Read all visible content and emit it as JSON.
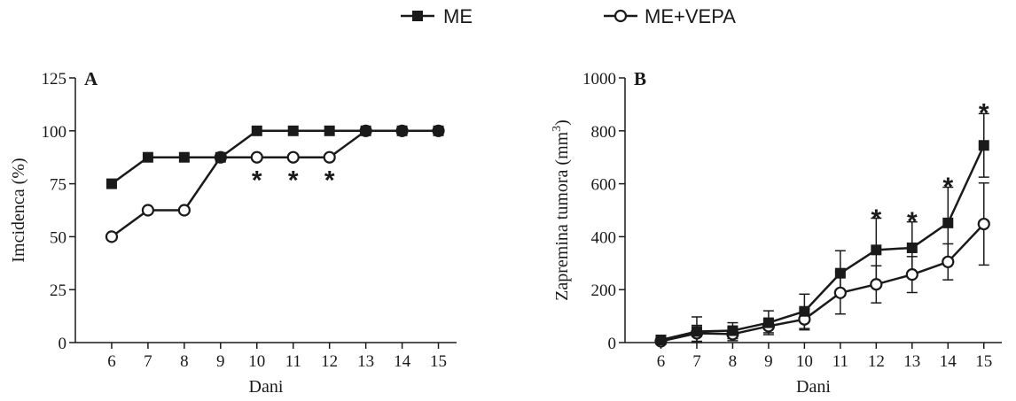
{
  "legend": {
    "position": "top-center",
    "items": [
      {
        "label": "ME",
        "marker": "filled-square"
      },
      {
        "label": "ME+VEPA",
        "marker": "open-circle"
      }
    ]
  },
  "colors": {
    "series": "#1a1a1a",
    "background": "#ffffff"
  },
  "chart_data": [
    {
      "type": "line",
      "panel_label": "A",
      "title": "",
      "xlabel": "Dani",
      "ylabel": "Imcidenca (%)",
      "x": [
        6,
        7,
        8,
        9,
        10,
        11,
        12,
        13,
        14,
        15
      ],
      "xlim": [
        5,
        15.5
      ],
      "ylim": [
        0,
        125
      ],
      "yticks": [
        0,
        25,
        50,
        75,
        100,
        125
      ],
      "grid": false,
      "series": [
        {
          "name": "ME",
          "marker": "filled-square",
          "values": [
            75,
            87.5,
            87.5,
            87.5,
            100,
            100,
            100,
            100,
            100,
            100
          ]
        },
        {
          "name": "ME+VEPA",
          "marker": "open-circle",
          "values": [
            50,
            62.5,
            62.5,
            87.5,
            87.5,
            87.5,
            87.5,
            100,
            100,
            100
          ]
        }
      ],
      "annotations": [
        {
          "x": 10,
          "y": 80,
          "text": "*"
        },
        {
          "x": 11,
          "y": 80,
          "text": "*"
        },
        {
          "x": 12,
          "y": 80,
          "text": "*"
        }
      ]
    },
    {
      "type": "line",
      "panel_label": "B",
      "title": "",
      "xlabel": "Dani",
      "ylabel": "Zapremina tumora (mm",
      "ylabel_sup": "3",
      "ylabel_end": ")",
      "x": [
        6,
        7,
        8,
        9,
        10,
        11,
        12,
        13,
        14,
        15
      ],
      "xlim": [
        5,
        15.5
      ],
      "ylim": [
        0,
        1000
      ],
      "yticks": [
        0,
        200,
        400,
        600,
        800,
        1000
      ],
      "grid": false,
      "series": [
        {
          "name": "ME",
          "marker": "filled-square",
          "values": [
            10,
            42,
            45,
            75,
            118,
            262,
            350,
            358,
            452,
            745
          ],
          "errors": [
            8,
            55,
            30,
            45,
            65,
            85,
            120,
            98,
            135,
            120
          ]
        },
        {
          "name": "ME+VEPA",
          "marker": "open-circle",
          "values": [
            5,
            35,
            32,
            62,
            88,
            188,
            220,
            257,
            305,
            448
          ],
          "errors": [
            3,
            30,
            25,
            25,
            40,
            80,
            70,
            68,
            68,
            155
          ]
        }
      ],
      "annotations": [
        {
          "x": 12,
          "y": 495,
          "text": "*"
        },
        {
          "x": 13,
          "y": 485,
          "text": "*"
        },
        {
          "x": 14,
          "y": 615,
          "text": "*"
        },
        {
          "x": 15,
          "y": 895,
          "text": "*"
        }
      ]
    }
  ]
}
